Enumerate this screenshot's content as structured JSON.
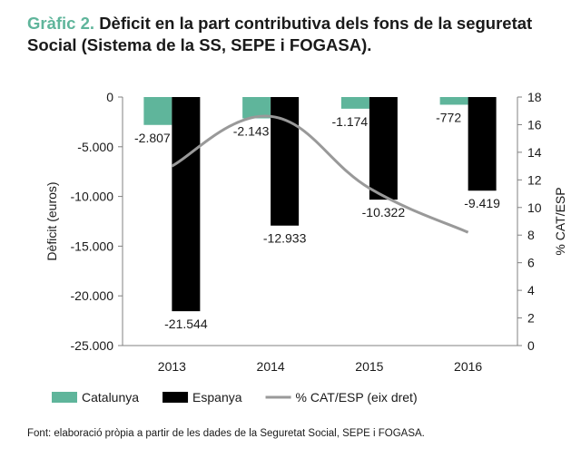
{
  "title": {
    "number": "Gràfic 2.",
    "text": "Dèficit en la part contributiva dels fons de la seguretat Social (Sistema de la SS, SEPE i FOGASA)."
  },
  "source": "Font: elaboració pròpia a partir de les dades de la Seguretat Social, SEPE i FOGASA.",
  "chart_data": {
    "type": "bar",
    "categories": [
      "2013",
      "2014",
      "2015",
      "2016"
    ],
    "series": [
      {
        "name": "Catalunya",
        "kind": "bar",
        "axis": "left",
        "color": "#5fb59b",
        "values": [
          -2807,
          -2143,
          -1174,
          -772
        ],
        "labels": [
          "-2.807",
          "-2.143",
          "-1.174",
          "-772"
        ]
      },
      {
        "name": "Espanya",
        "kind": "bar",
        "axis": "left",
        "color": "#000000",
        "values": [
          -21544,
          -12933,
          -10322,
          -9419
        ],
        "labels": [
          "-21.544",
          "-12.933",
          "-10.322",
          "-9.419"
        ]
      },
      {
        "name": "% CAT/ESP (eix dret)",
        "kind": "line",
        "axis": "right",
        "color": "#999999",
        "values": [
          13.0,
          16.6,
          11.4,
          8.2
        ]
      }
    ],
    "ylabel": "Dèficit (euros)",
    "ylabel_right": "% CAT/ESP",
    "ylim": [
      -25000,
      0
    ],
    "yticks": [
      0,
      -5000,
      -10000,
      -15000,
      -20000,
      -25000
    ],
    "ytick_labels": [
      "0",
      "-5.000",
      "-10.000",
      "-15.000",
      "-20.000",
      "-25.000"
    ],
    "ylim_right": [
      0,
      18
    ],
    "yticks_right": [
      0,
      2,
      4,
      6,
      8,
      10,
      12,
      14,
      16,
      18
    ],
    "legend_position": "bottom",
    "grid": false
  }
}
